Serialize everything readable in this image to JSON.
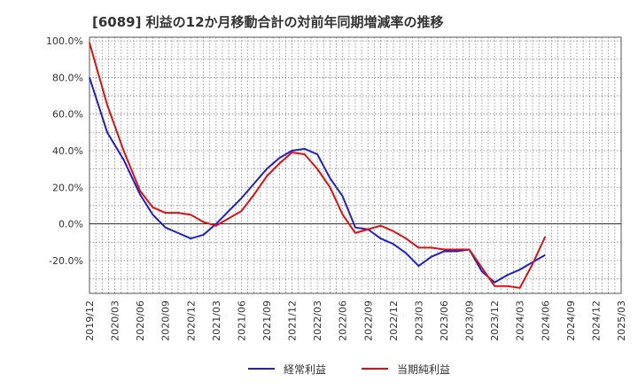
{
  "chart_data": {
    "type": "line",
    "title": "[6089]  利益の12か月移動合計の対前年同期増減率の推移",
    "xlabel": "",
    "ylabel": "",
    "ylim": [
      -38,
      102
    ],
    "yticks": [
      100,
      80,
      60,
      40,
      20,
      0,
      -20
    ],
    "ytick_labels": [
      "100.0%",
      "80.0%",
      "60.0%",
      "40.0%",
      "20.0%",
      "0.0%",
      "-20.0%"
    ],
    "x_labels": [
      "2019/12",
      "2020/03",
      "2020/06",
      "2020/09",
      "2020/12",
      "2021/03",
      "2021/06",
      "2021/09",
      "2021/12",
      "2022/03",
      "2022/06",
      "2022/09",
      "2022/12",
      "2023/03",
      "2023/06",
      "2023/09",
      "2023/12",
      "2024/03",
      "2024/06",
      "2024/09",
      "2024/12",
      "2025/03"
    ],
    "legend_position": "bottom",
    "series": [
      {
        "name": "経常利益",
        "color": "#1f1fcc",
        "values": [
          80,
          50,
          35,
          16,
          5,
          -2,
          -5,
          -8,
          -6,
          0,
          7,
          14,
          22,
          30,
          36,
          40,
          41,
          38,
          25,
          15,
          -2,
          -3,
          -8,
          -11,
          -16,
          -23,
          -18,
          -15,
          -15,
          -14,
          -26,
          -32,
          -28,
          -25,
          -21,
          -17
        ]
      },
      {
        "name": "当期純利益",
        "color": "#dd1111",
        "values": [
          99,
          65,
          40,
          18,
          9,
          6,
          6,
          5,
          1,
          -1,
          3,
          7,
          16,
          26,
          33,
          39,
          38,
          30,
          20,
          5,
          -5,
          -3,
          -1,
          -4,
          -8,
          -13,
          -13,
          -14,
          -14,
          -14,
          -24,
          -34,
          -34,
          -35,
          -22,
          -7
        ]
      }
    ],
    "series_x_indices": [
      0,
      0.7,
      1.35,
      2,
      2.5,
      3,
      3.5,
      4,
      4.5,
      5,
      5.5,
      6,
      6.5,
      7,
      7.5,
      8,
      8.5,
      9,
      9.5,
      10,
      10.5,
      11,
      11.5,
      12,
      12.5,
      13,
      13.5,
      14,
      14.5,
      15,
      15.5,
      16,
      16.5,
      17,
      17.5,
      18
    ],
    "legend": [
      "経常利益",
      "当期純利益"
    ]
  }
}
